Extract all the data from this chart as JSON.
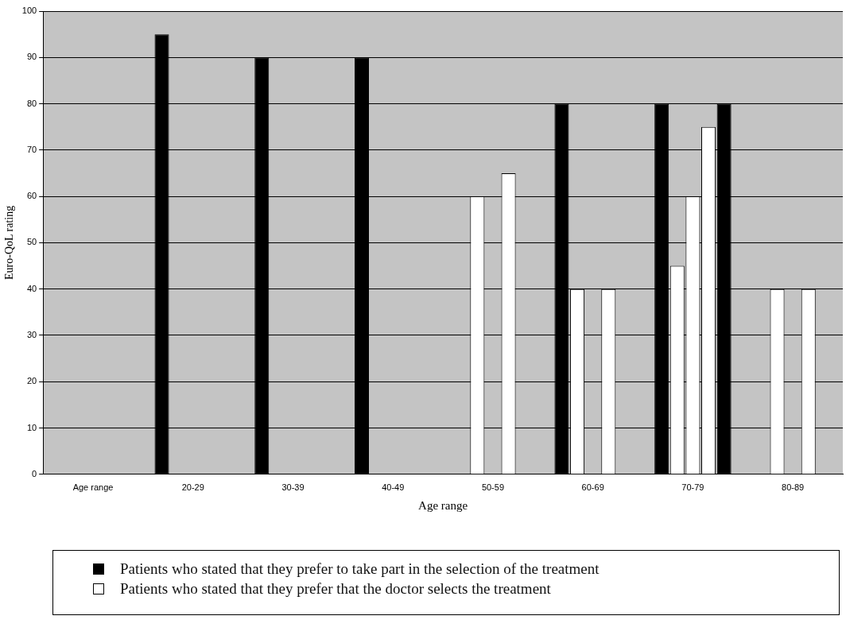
{
  "chart_data": {
    "type": "bar",
    "xlabel": "Age range",
    "ylabel": "Euro-QoL rating",
    "categories": [
      "Age range",
      "20-29",
      "30-39",
      "40-49",
      "50-59",
      "60-69",
      "70-79",
      "80-89"
    ],
    "series": [
      {
        "name": "Patients who stated that they prefer to take part in the selection of the treatment",
        "color": "#000000",
        "values": [
          null,
          95,
          90,
          90,
          null,
          80,
          80,
          null
        ]
      },
      {
        "name": "Patients who stated that they prefer that the doctor selects the treatment",
        "color": "#ffffff",
        "values": [
          null,
          null,
          null,
          null,
          60,
          40,
          45,
          40
        ]
      },
      {
        "color": "#ffffff",
        "values": [
          null,
          null,
          null,
          null,
          null,
          null,
          60,
          null
        ]
      },
      {
        "color": "#ffffff",
        "values": [
          null,
          null,
          null,
          null,
          65,
          40,
          75,
          40
        ]
      },
      {
        "color": "#000000",
        "values": [
          null,
          null,
          null,
          null,
          null,
          null,
          80,
          null
        ]
      }
    ],
    "ylim": [
      0,
      100
    ],
    "yticks": [
      0,
      10,
      20,
      30,
      40,
      50,
      60,
      70,
      80,
      90,
      100
    ],
    "grid": "y",
    "legend": "bottom"
  }
}
